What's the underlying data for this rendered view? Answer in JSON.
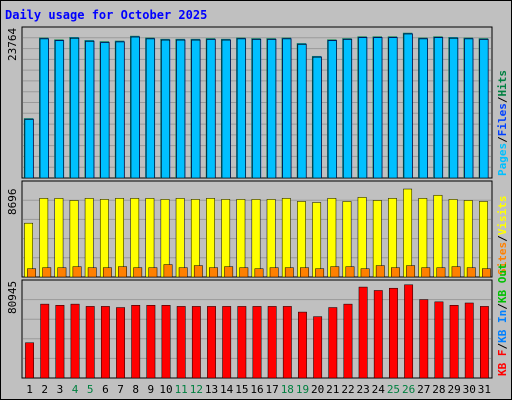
{
  "title": "Daily usage for October 2025",
  "colors": {
    "background": "#c0c0c0",
    "plot_bg": "#c0c0c0",
    "grid": "#9a9a9a",
    "title": "#0000ff",
    "pages": "#00c0ff",
    "files": "#0040ff",
    "hits": "#008040",
    "visits": "#ffff00",
    "sites": "#ff8000",
    "kb_f": "#ff0000",
    "kb_in": "#0080ff",
    "kb_out": "#00c000",
    "weekend_label": "#008040",
    "weekday_label": "#000000"
  },
  "chart_data": [
    {
      "type": "bar",
      "panel": "top",
      "max_label": "23764",
      "ylim": [
        0,
        23764
      ],
      "legend": [
        {
          "text": "Pages",
          "color": "#00c0ff"
        },
        {
          "text": "Files",
          "color": "#0040ff"
        },
        {
          "text": "Hits",
          "color": "#008040"
        }
      ],
      "legend_separator": "/",
      "categories": [
        "1",
        "2",
        "3",
        "4",
        "5",
        "6",
        "7",
        "8",
        "9",
        "10",
        "11",
        "12",
        "13",
        "14",
        "15",
        "16",
        "17",
        "18",
        "19",
        "20",
        "21",
        "22",
        "23",
        "24",
        "25",
        "26",
        "27",
        "28",
        "29",
        "30",
        "31"
      ],
      "series": [
        {
          "name": "Hits",
          "values": [
            9800,
            23000,
            22700,
            23100,
            22600,
            22400,
            22500,
            23300,
            23000,
            22800,
            22800,
            22800,
            22900,
            22800,
            23000,
            22900,
            22900,
            23000,
            22100,
            20000,
            22700,
            22900,
            23200,
            23200,
            23200,
            23800,
            23000,
            23200,
            23100,
            23000,
            22900
          ]
        },
        {
          "name": "Files",
          "values": [
            9700,
            22900,
            22600,
            23000,
            22500,
            22300,
            22400,
            23200,
            22900,
            22700,
            22700,
            22700,
            22800,
            22700,
            22900,
            22800,
            22800,
            22900,
            22000,
            19900,
            22600,
            22800,
            23100,
            23100,
            23100,
            23700,
            22900,
            23100,
            23000,
            22900,
            22800
          ]
        },
        {
          "name": "Pages",
          "values": [
            9600,
            22800,
            22500,
            22900,
            22400,
            22200,
            22300,
            23100,
            22800,
            22600,
            22600,
            22600,
            22700,
            22600,
            22800,
            22700,
            22700,
            22800,
            21900,
            19800,
            22500,
            22700,
            23000,
            23000,
            23000,
            23600,
            22800,
            23000,
            22900,
            22800,
            22700
          ]
        }
      ]
    },
    {
      "type": "bar",
      "panel": "middle",
      "max_label": "8696",
      "ylim": [
        0,
        8696
      ],
      "legend": [
        {
          "text": "Sites",
          "color": "#ff8000"
        },
        {
          "text": "Visits",
          "color": "#ffff00"
        }
      ],
      "legend_separator": "/",
      "categories": [
        "1",
        "2",
        "3",
        "4",
        "5",
        "6",
        "7",
        "8",
        "9",
        "10",
        "11",
        "12",
        "13",
        "14",
        "15",
        "16",
        "17",
        "18",
        "19",
        "20",
        "21",
        "22",
        "23",
        "24",
        "25",
        "26",
        "27",
        "28",
        "29",
        "30",
        "31"
      ],
      "series": [
        {
          "name": "Visits",
          "values": [
            5200,
            7600,
            7600,
            7400,
            7600,
            7500,
            7600,
            7600,
            7600,
            7500,
            7600,
            7500,
            7600,
            7500,
            7500,
            7500,
            7500,
            7600,
            7300,
            7200,
            7600,
            7300,
            7700,
            7400,
            7600,
            8500,
            7600,
            7900,
            7500,
            7400,
            7300
          ]
        },
        {
          "name": "Sites",
          "values": [
            800,
            900,
            900,
            1000,
            900,
            900,
            1000,
            900,
            900,
            1200,
            900,
            1100,
            900,
            1000,
            900,
            800,
            900,
            900,
            900,
            800,
            1000,
            1000,
            800,
            1100,
            900,
            1100,
            900,
            900,
            1000,
            900,
            800
          ]
        }
      ]
    },
    {
      "type": "bar",
      "panel": "bottom",
      "max_label": "80945",
      "ylim": [
        0,
        80945
      ],
      "legend": [
        {
          "text": "KB F",
          "color": "#ff0000"
        },
        {
          "text": "KB In",
          "color": "#0080ff"
        },
        {
          "text": "KB Out",
          "color": "#00c000"
        }
      ],
      "legend_separator": "/",
      "categories": [
        "1",
        "2",
        "3",
        "4",
        "5",
        "6",
        "7",
        "8",
        "9",
        "10",
        "11",
        "12",
        "13",
        "14",
        "15",
        "16",
        "17",
        "18",
        "19",
        "20",
        "21",
        "22",
        "23",
        "24",
        "25",
        "26",
        "27",
        "28",
        "29",
        "30",
        "31"
      ],
      "weekend_days": [
        "4",
        "5",
        "11",
        "12",
        "18",
        "19",
        "25",
        "26"
      ],
      "series": [
        {
          "name": "KB F",
          "values": [
            31000,
            65000,
            64000,
            65000,
            63000,
            63000,
            62000,
            64000,
            64000,
            64000,
            63000,
            63000,
            63000,
            63000,
            63000,
            63000,
            63000,
            63000,
            58000,
            54000,
            62000,
            65000,
            80000,
            77000,
            79000,
            82000,
            69000,
            67000,
            64000,
            66000,
            63000
          ]
        }
      ]
    }
  ]
}
